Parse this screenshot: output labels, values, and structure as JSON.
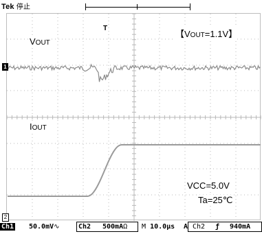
{
  "header": {
    "brand": "Tek",
    "state": "停止"
  },
  "screen": {
    "ch1_marker": "1",
    "ch2_marker": "2",
    "trigger_marker": "T",
    "label_vout_main": "V",
    "label_vout_sub": "OUT",
    "label_iout_main": "I",
    "label_iout_sub": "OUT",
    "condition_prefix": "【V",
    "condition_sub": "OUT",
    "condition_suffix": "=1.1V】",
    "vcc": "VCC=5.0V",
    "ta": "Ta=25℃"
  },
  "status": {
    "ch1": "Ch1",
    "ch1_scale": "50.0mV",
    "ch1_coupling": "∿",
    "ch2": "Ch2",
    "ch2_scale": "500mA",
    "ch2_unit": "Ω",
    "timebase_prefix": "M",
    "timebase": "10.0µs",
    "trig_mode": "A",
    "trig_source": "Ch2",
    "trig_slope": "ƒ",
    "trig_level": "940mA"
  },
  "colors": {
    "trace": "#8a8a8a",
    "grid": "#b8b8b8",
    "background": "#ffffff"
  }
}
